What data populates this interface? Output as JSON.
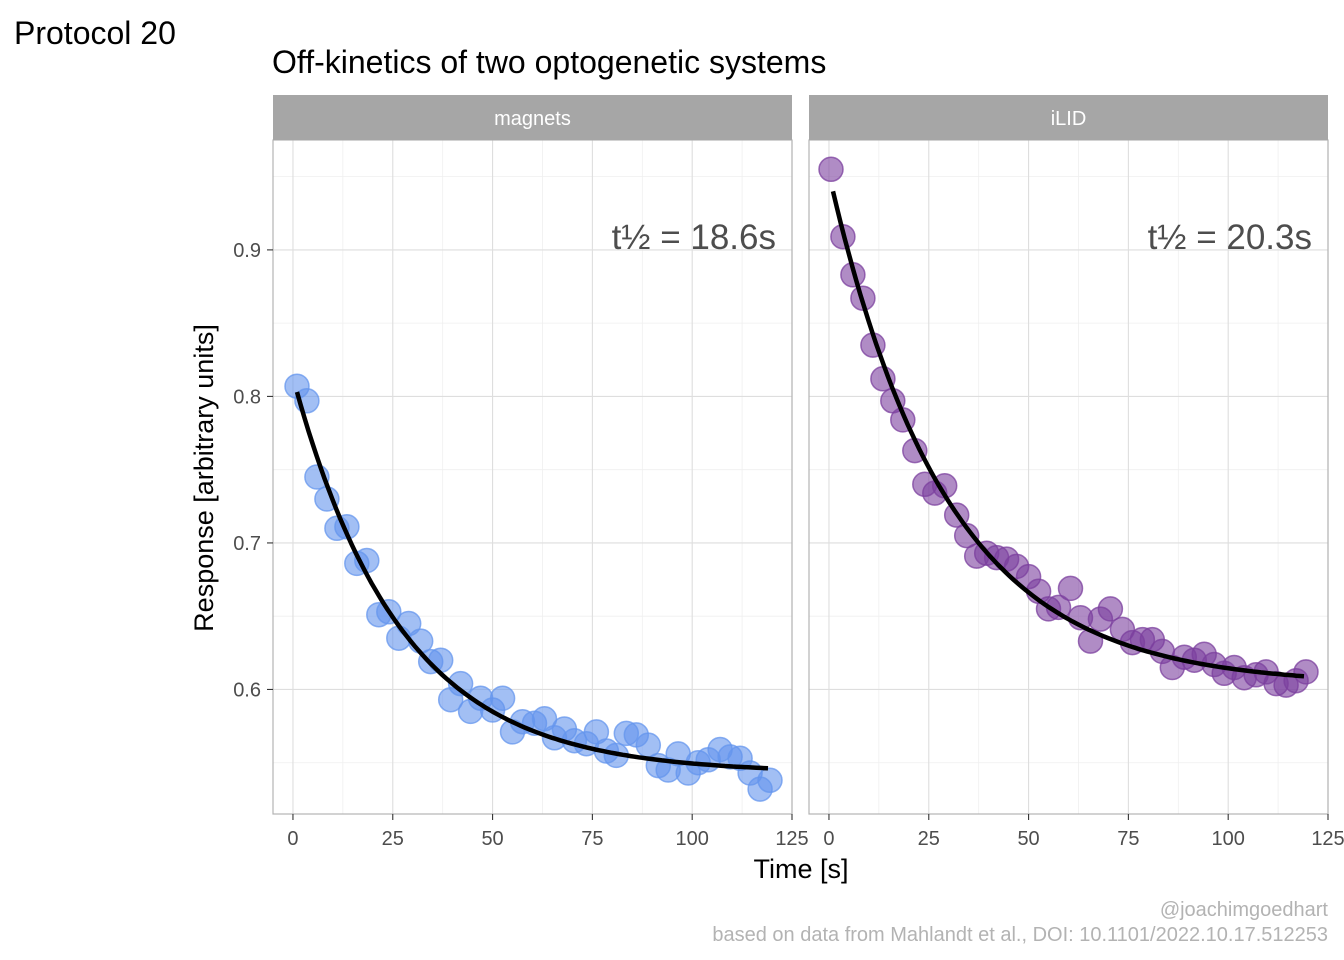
{
  "tag": "Protocol 20",
  "caption": {
    "line1": "@joachimgoedhart",
    "line2": "based on data from Mahlandt et al., DOI: 10.1101/2022.10.17.512253"
  },
  "chart_data": {
    "type": "scatter",
    "title": "Off-kinetics of two optogenetic systems",
    "xlabel": "Time [s]",
    "ylabel": "Response [arbitrary units]",
    "xlim": [
      -5,
      125
    ],
    "ylim": [
      0.515,
      0.975
    ],
    "x_ticks": [
      0,
      25,
      50,
      75,
      100,
      125
    ],
    "x_tick_labels": [
      "0",
      "25",
      "50",
      "75",
      "100",
      "125"
    ],
    "y_ticks": [
      0.6,
      0.7,
      0.8,
      0.9
    ],
    "y_tick_labels": [
      "0.6",
      "0.7",
      "0.8",
      "0.9"
    ],
    "grid": true,
    "panels": [
      {
        "name": "magnets",
        "color": "#6495ED",
        "halflife_label": "t½ = 18.6s",
        "fit": {
          "type": "exponential-decay",
          "plateau": 0.543,
          "y0": 0.803,
          "half_life": 18.6,
          "x_range": [
            1,
            119
          ]
        },
        "points": [
          {
            "x": 1,
            "y": 0.807
          },
          {
            "x": 3.5,
            "y": 0.797
          },
          {
            "x": 6,
            "y": 0.745
          },
          {
            "x": 8.5,
            "y": 0.73
          },
          {
            "x": 11,
            "y": 0.71
          },
          {
            "x": 13.5,
            "y": 0.711
          },
          {
            "x": 16,
            "y": 0.686
          },
          {
            "x": 18.5,
            "y": 0.688
          },
          {
            "x": 21.5,
            "y": 0.651
          },
          {
            "x": 24,
            "y": 0.653
          },
          {
            "x": 26.5,
            "y": 0.635
          },
          {
            "x": 29,
            "y": 0.645
          },
          {
            "x": 32,
            "y": 0.633
          },
          {
            "x": 34.5,
            "y": 0.619
          },
          {
            "x": 37,
            "y": 0.62
          },
          {
            "x": 39.5,
            "y": 0.593
          },
          {
            "x": 42,
            "y": 0.604
          },
          {
            "x": 44.5,
            "y": 0.585
          },
          {
            "x": 47,
            "y": 0.594
          },
          {
            "x": 50,
            "y": 0.586
          },
          {
            "x": 52.5,
            "y": 0.594
          },
          {
            "x": 55,
            "y": 0.571
          },
          {
            "x": 57.5,
            "y": 0.578
          },
          {
            "x": 60.5,
            "y": 0.577
          },
          {
            "x": 63,
            "y": 0.58
          },
          {
            "x": 65.5,
            "y": 0.567
          },
          {
            "x": 68,
            "y": 0.573
          },
          {
            "x": 70.5,
            "y": 0.565
          },
          {
            "x": 73.5,
            "y": 0.563
          },
          {
            "x": 76,
            "y": 0.571
          },
          {
            "x": 78.5,
            "y": 0.558
          },
          {
            "x": 81,
            "y": 0.555
          },
          {
            "x": 83.5,
            "y": 0.57
          },
          {
            "x": 86,
            "y": 0.569
          },
          {
            "x": 89,
            "y": 0.562
          },
          {
            "x": 91.5,
            "y": 0.548
          },
          {
            "x": 94,
            "y": 0.545
          },
          {
            "x": 96.5,
            "y": 0.556
          },
          {
            "x": 99,
            "y": 0.543
          },
          {
            "x": 101.5,
            "y": 0.55
          },
          {
            "x": 104,
            "y": 0.552
          },
          {
            "x": 107,
            "y": 0.559
          },
          {
            "x": 109.5,
            "y": 0.554
          },
          {
            "x": 112,
            "y": 0.553
          },
          {
            "x": 114.5,
            "y": 0.543
          },
          {
            "x": 117,
            "y": 0.532
          },
          {
            "x": 119.5,
            "y": 0.538
          }
        ]
      },
      {
        "name": "iLID",
        "color": "#7B3F9E",
        "halflife_label": "t½ = 20.3s",
        "fit": {
          "type": "exponential-decay",
          "plateau": 0.603,
          "y0": 0.94,
          "half_life": 20.3,
          "x_range": [
            1,
            119
          ]
        },
        "points": [
          {
            "x": 0.5,
            "y": 0.955
          },
          {
            "x": 3.5,
            "y": 0.909
          },
          {
            "x": 6,
            "y": 0.883
          },
          {
            "x": 8.5,
            "y": 0.867
          },
          {
            "x": 11,
            "y": 0.835
          },
          {
            "x": 13.5,
            "y": 0.812
          },
          {
            "x": 16,
            "y": 0.797
          },
          {
            "x": 18.5,
            "y": 0.784
          },
          {
            "x": 21.5,
            "y": 0.763
          },
          {
            "x": 24,
            "y": 0.74
          },
          {
            "x": 26.5,
            "y": 0.734
          },
          {
            "x": 29,
            "y": 0.739
          },
          {
            "x": 32,
            "y": 0.719
          },
          {
            "x": 34.5,
            "y": 0.705
          },
          {
            "x": 37,
            "y": 0.691
          },
          {
            "x": 39.5,
            "y": 0.693
          },
          {
            "x": 42,
            "y": 0.69
          },
          {
            "x": 44.5,
            "y": 0.689
          },
          {
            "x": 47,
            "y": 0.684
          },
          {
            "x": 50,
            "y": 0.677
          },
          {
            "x": 52.5,
            "y": 0.667
          },
          {
            "x": 55,
            "y": 0.655
          },
          {
            "x": 57.5,
            "y": 0.656
          },
          {
            "x": 60.5,
            "y": 0.669
          },
          {
            "x": 63,
            "y": 0.649
          },
          {
            "x": 65.5,
            "y": 0.633
          },
          {
            "x": 68,
            "y": 0.648
          },
          {
            "x": 70.5,
            "y": 0.655
          },
          {
            "x": 73.5,
            "y": 0.641
          },
          {
            "x": 76,
            "y": 0.632
          },
          {
            "x": 78.5,
            "y": 0.634
          },
          {
            "x": 81,
            "y": 0.634
          },
          {
            "x": 83.5,
            "y": 0.626
          },
          {
            "x": 86,
            "y": 0.615
          },
          {
            "x": 89,
            "y": 0.622
          },
          {
            "x": 91.5,
            "y": 0.62
          },
          {
            "x": 94,
            "y": 0.624
          },
          {
            "x": 96.5,
            "y": 0.617
          },
          {
            "x": 99,
            "y": 0.611
          },
          {
            "x": 101.5,
            "y": 0.615
          },
          {
            "x": 104,
            "y": 0.608
          },
          {
            "x": 107,
            "y": 0.61
          },
          {
            "x": 109.5,
            "y": 0.612
          },
          {
            "x": 112,
            "y": 0.604
          },
          {
            "x": 114.5,
            "y": 0.603
          },
          {
            "x": 117,
            "y": 0.606
          },
          {
            "x": 119.5,
            "y": 0.612
          }
        ]
      }
    ]
  }
}
